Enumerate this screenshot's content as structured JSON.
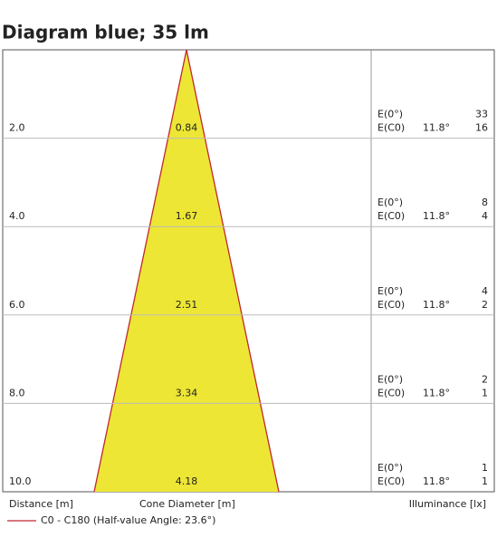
{
  "chart_data": {
    "type": "cone",
    "title": "Diagram blue; 35 lm",
    "x_label": "Distance [m]",
    "cone_label": "Cone Diameter [m]",
    "illuminance_label": "Illuminance [lx]",
    "ylim": [
      0,
      10
    ],
    "distances": [
      {
        "value": 2,
        "label": "2.0"
      },
      {
        "value": 4,
        "label": "4.0"
      },
      {
        "value": 6,
        "label": "6.0"
      },
      {
        "value": 8,
        "label": "8.0"
      },
      {
        "value": 10,
        "label": "10.0"
      }
    ],
    "diameters": [
      0.84,
      1.67,
      2.51,
      3.34,
      4.18
    ],
    "e0_label": "E(0°)",
    "ec0_label": "E(C0)",
    "angle_label": "11.8°",
    "e0": [
      33,
      8,
      4,
      2,
      1
    ],
    "ec0": [
      16,
      4,
      2,
      1,
      1
    ],
    "fill_color": "#ede635",
    "series": [
      {
        "name": "C0 - C180 (Half-value Angle: 23.6°)",
        "color": "#c0282d"
      }
    ]
  }
}
